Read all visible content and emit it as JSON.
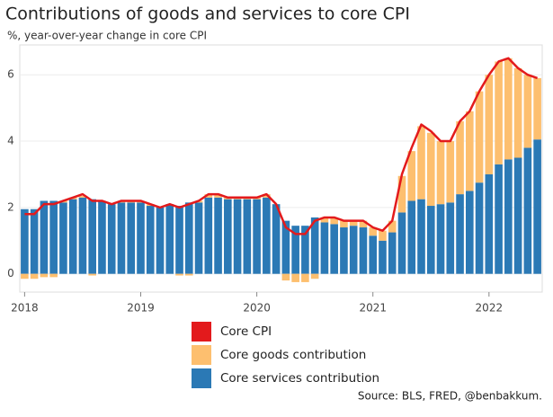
{
  "chart_data": {
    "type": "bar",
    "stacked": true,
    "title": "Contributions of goods and services to core CPI",
    "subtitle": "%, year-over-year change in core CPI",
    "source": "Source: BLS, FRED, @benbakkum.",
    "categories": [
      "2018",
      null,
      null,
      null,
      null,
      null,
      null,
      null,
      null,
      null,
      null,
      null,
      "2019",
      null,
      null,
      null,
      null,
      null,
      null,
      null,
      null,
      null,
      null,
      null,
      "2020",
      null,
      null,
      null,
      null,
      null,
      null,
      null,
      null,
      null,
      null,
      null,
      "2021",
      null,
      null,
      null,
      null,
      null,
      null,
      null,
      null,
      null,
      null,
      null,
      "2022",
      null,
      null,
      null,
      null,
      null
    ],
    "series": [
      {
        "name": "Core CPI",
        "type": "line",
        "color": "#e31a1c",
        "values": [
          1.8,
          1.8,
          2.1,
          2.1,
          2.2,
          2.3,
          2.4,
          2.2,
          2.2,
          2.1,
          2.2,
          2.2,
          2.2,
          2.1,
          2.0,
          2.1,
          2.0,
          2.1,
          2.2,
          2.4,
          2.4,
          2.3,
          2.3,
          2.3,
          2.3,
          2.4,
          2.1,
          1.4,
          1.2,
          1.2,
          1.6,
          1.7,
          1.7,
          1.6,
          1.6,
          1.6,
          1.4,
          1.3,
          1.6,
          3.0,
          3.8,
          4.5,
          4.3,
          4.0,
          4.0,
          4.6,
          4.9,
          5.5,
          6.0,
          6.4,
          6.5,
          6.2,
          6.0,
          5.9
        ]
      },
      {
        "name": "Core goods contribution",
        "type": "bar",
        "color": "#fdbf6f",
        "values": [
          -0.15,
          -0.15,
          -0.1,
          -0.1,
          0.05,
          0.05,
          0.05,
          -0.05,
          0,
          0,
          0.05,
          0.05,
          0.05,
          0.05,
          0,
          0,
          -0.05,
          -0.05,
          0.05,
          0.1,
          0.1,
          0.05,
          0.05,
          0.05,
          0.05,
          0.1,
          0,
          -0.2,
          -0.25,
          -0.25,
          -0.15,
          0.15,
          0.2,
          0.2,
          0.15,
          0.2,
          0.25,
          0.3,
          0.35,
          1.1,
          1.5,
          2.2,
          2.2,
          1.9,
          1.85,
          2.2,
          2.4,
          2.75,
          3.0,
          3.1,
          3.05,
          2.7,
          2.2,
          1.85
        ]
      },
      {
        "name": "Core services contribution",
        "type": "bar",
        "color": "#2b79b5",
        "values": [
          1.95,
          1.95,
          2.2,
          2.2,
          2.15,
          2.25,
          2.3,
          2.25,
          2.2,
          2.1,
          2.15,
          2.15,
          2.15,
          2.05,
          2.0,
          2.1,
          2.05,
          2.15,
          2.15,
          2.3,
          2.3,
          2.25,
          2.25,
          2.25,
          2.25,
          2.3,
          2.1,
          1.6,
          1.45,
          1.45,
          1.7,
          1.55,
          1.5,
          1.4,
          1.45,
          1.4,
          1.15,
          1.0,
          1.25,
          1.85,
          2.2,
          2.25,
          2.05,
          2.1,
          2.15,
          2.4,
          2.5,
          2.75,
          3.0,
          3.3,
          3.45,
          3.5,
          3.8,
          4.05
        ]
      }
    ],
    "ylim": [
      -0.55,
      6.9
    ],
    "yticks": [
      0,
      2,
      4,
      6
    ],
    "grid": true,
    "legend": "bottom"
  }
}
